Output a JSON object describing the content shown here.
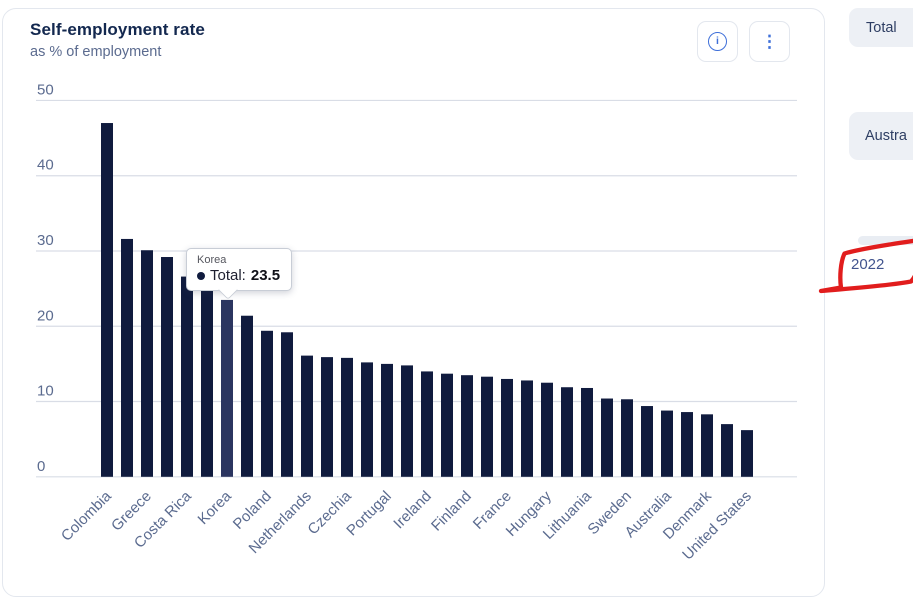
{
  "header": {
    "title": "Self-employment rate",
    "subtitle": "as % of employment",
    "icons": {
      "info": "i",
      "menu": "⋮"
    }
  },
  "tooltip": {
    "country": "Korea",
    "series": "Total:",
    "value": "23.5"
  },
  "side_panel": {
    "chip_total": "Total",
    "chip_partial": "Austra",
    "year": "2022"
  },
  "colors": {
    "bar": "#101b3e",
    "bar_highlight": "#2b3560",
    "grid": "#d9dde6",
    "axis_text": "#5b6b8f",
    "accent_blue": "#3e6fd9",
    "annotation_red": "#e11d1d"
  },
  "chart_data": {
    "type": "bar",
    "title": "Self-employment rate",
    "subtitle": "as % of employment",
    "xlabel": "",
    "ylabel": "as % of employment",
    "ylim": [
      0,
      50
    ],
    "yticks": [
      0,
      10,
      20,
      30,
      40,
      50
    ],
    "grid": true,
    "legend": false,
    "highlighted_bar": "Korea",
    "tooltip_shown": {
      "category": "Korea",
      "series": "Total",
      "value": 23.5
    },
    "bars": [
      {
        "label": "Colombia",
        "value": 47.0,
        "highlighted": false
      },
      {
        "label": "",
        "value": 31.6,
        "highlighted": false
      },
      {
        "label": "Greece",
        "value": 30.1,
        "highlighted": false
      },
      {
        "label": "",
        "value": 29.2,
        "highlighted": false
      },
      {
        "label": "Costa Rica",
        "value": 26.6,
        "highlighted": false
      },
      {
        "label": "",
        "value": 24.8,
        "highlighted": false
      },
      {
        "label": "Korea",
        "value": 23.5,
        "highlighted": true
      },
      {
        "label": "",
        "value": 21.4,
        "highlighted": false
      },
      {
        "label": "Poland",
        "value": 19.4,
        "highlighted": false
      },
      {
        "label": "",
        "value": 19.2,
        "highlighted": false
      },
      {
        "label": "Netherlands",
        "value": 16.1,
        "highlighted": false
      },
      {
        "label": "",
        "value": 15.9,
        "highlighted": false
      },
      {
        "label": "Czechia",
        "value": 15.8,
        "highlighted": false
      },
      {
        "label": "",
        "value": 15.2,
        "highlighted": false
      },
      {
        "label": "Portugal",
        "value": 15.0,
        "highlighted": false
      },
      {
        "label": "",
        "value": 14.8,
        "highlighted": false
      },
      {
        "label": "Ireland",
        "value": 14.0,
        "highlighted": false
      },
      {
        "label": "",
        "value": 13.7,
        "highlighted": false
      },
      {
        "label": "Finland",
        "value": 13.5,
        "highlighted": false
      },
      {
        "label": "",
        "value": 13.3,
        "highlighted": false
      },
      {
        "label": "France",
        "value": 13.0,
        "highlighted": false
      },
      {
        "label": "",
        "value": 12.8,
        "highlighted": false
      },
      {
        "label": "Hungary",
        "value": 12.5,
        "highlighted": false
      },
      {
        "label": "",
        "value": 11.9,
        "highlighted": false
      },
      {
        "label": "Lithuania",
        "value": 11.8,
        "highlighted": false
      },
      {
        "label": "",
        "value": 10.4,
        "highlighted": false
      },
      {
        "label": "Sweden",
        "value": 10.3,
        "highlighted": false
      },
      {
        "label": "",
        "value": 9.4,
        "highlighted": false
      },
      {
        "label": "Australia",
        "value": 8.8,
        "highlighted": false
      },
      {
        "label": "",
        "value": 8.6,
        "highlighted": false
      },
      {
        "label": "Denmark",
        "value": 8.3,
        "highlighted": false
      },
      {
        "label": "",
        "value": 7.0,
        "highlighted": false
      },
      {
        "label": "United States",
        "value": 6.2,
        "highlighted": false
      }
    ]
  }
}
